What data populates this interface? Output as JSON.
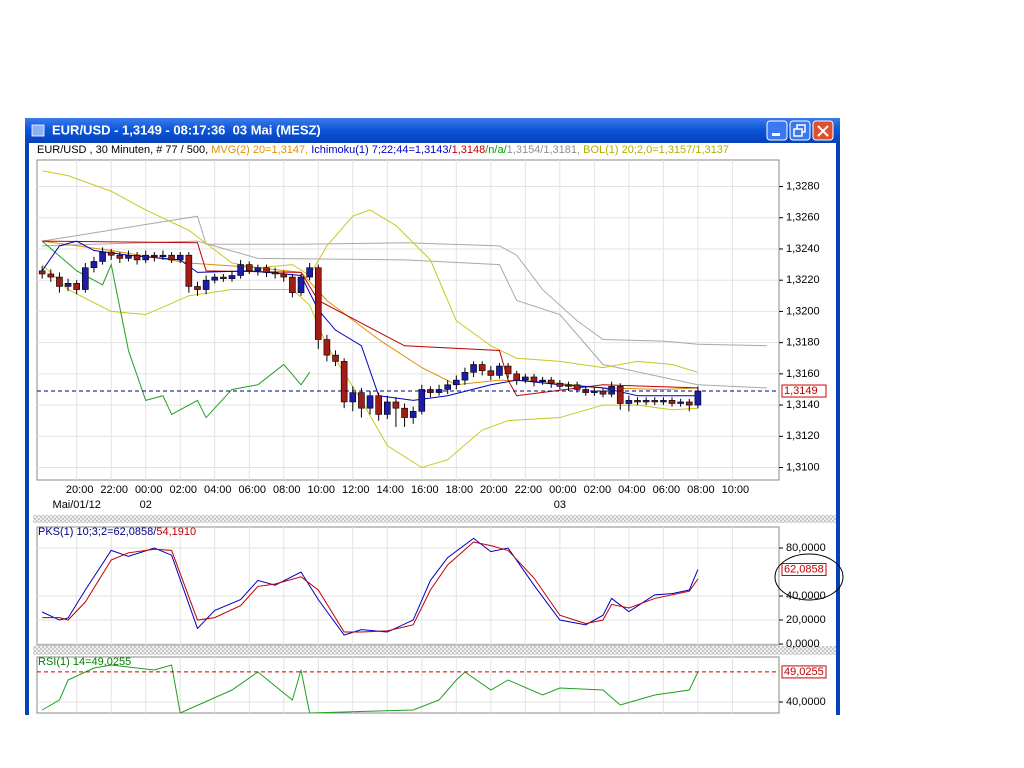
{
  "window": {
    "title": "EUR/USD - 1,3149 - 08:17:36  03 Mai (MESZ)"
  },
  "chart_data": [
    {
      "type": "candlestick",
      "legend": [
        {
          "text": "EUR/USD , 30 Minuten, # 77 / 500, ",
          "color": "#000000"
        },
        {
          "text": "MVG(2) 20=1,3147, ",
          "color": "#e09000"
        },
        {
          "text": "Ichimoku(1) 7;22;44=1,3143/",
          "color": "#0000c0"
        },
        {
          "text": "1,3148",
          "color": "#c00000"
        },
        {
          "text": "/n/a/",
          "color": "#00a000"
        },
        {
          "text": "1,3154/1,3181, ",
          "color": "#909090"
        },
        {
          "text": "BOL(1) 20;2,0=1,3157/1,3137",
          "color": "#b0b000"
        }
      ],
      "open": [
        1.3226,
        1.3224,
        1.3222,
        1.3216,
        1.3218,
        1.3214,
        1.3228,
        1.3232,
        1.3238,
        1.3236,
        1.3234,
        1.3236,
        1.3233,
        1.3236,
        1.3235,
        1.3236,
        1.3233,
        1.3236,
        1.3216,
        1.3214,
        1.322,
        1.3222,
        1.3221,
        1.3223,
        1.323,
        1.3226,
        1.3228,
        1.3225,
        1.3224,
        1.3222,
        1.3212,
        1.3222,
        1.3228,
        1.3182,
        1.3172,
        1.3168,
        1.3142,
        1.3148,
        1.3138,
        1.3146,
        1.3134,
        1.3142,
        1.3138,
        1.3132,
        1.3136,
        1.315,
        1.3148,
        1.315,
        1.3153,
        1.3156,
        1.3161,
        1.3166,
        1.3162,
        1.3159,
        1.3165,
        1.316,
        1.3156,
        1.3158,
        1.3155,
        1.3156,
        1.3154,
        1.3152,
        1.3153,
        1.315,
        1.3148,
        1.3149,
        1.3147,
        1.3152,
        1.3141,
        1.3143,
        1.3142,
        1.3143,
        1.3142,
        1.3143,
        1.3141,
        1.3142,
        1.314
      ],
      "high": [
        1.3229,
        1.3227,
        1.3225,
        1.3221,
        1.322,
        1.3231,
        1.3235,
        1.3241,
        1.324,
        1.3238,
        1.3239,
        1.3238,
        1.3239,
        1.3238,
        1.3239,
        1.3238,
        1.3238,
        1.3238,
        1.3219,
        1.3223,
        1.3224,
        1.3224,
        1.3226,
        1.3233,
        1.3232,
        1.323,
        1.323,
        1.3228,
        1.3226,
        1.3224,
        1.3224,
        1.3231,
        1.323,
        1.3185,
        1.3175,
        1.317,
        1.3152,
        1.3151,
        1.3149,
        1.3148,
        1.3146,
        1.3145,
        1.3141,
        1.3139,
        1.3153,
        1.3152,
        1.3153,
        1.3156,
        1.3159,
        1.3164,
        1.3168,
        1.3168,
        1.3165,
        1.3167,
        1.3167,
        1.3162,
        1.316,
        1.316,
        1.3158,
        1.3158,
        1.3156,
        1.3155,
        1.3155,
        1.3152,
        1.3151,
        1.3151,
        1.3155,
        1.3154,
        1.3146,
        1.3145,
        1.3145,
        1.3145,
        1.3145,
        1.3145,
        1.3144,
        1.3144,
        1.3152
      ],
      "low": [
        1.3221,
        1.3219,
        1.3212,
        1.3213,
        1.3211,
        1.3212,
        1.3225,
        1.323,
        1.3233,
        1.3231,
        1.3232,
        1.323,
        1.3231,
        1.3232,
        1.3233,
        1.3231,
        1.3231,
        1.3212,
        1.321,
        1.3211,
        1.3218,
        1.3219,
        1.3219,
        1.3221,
        1.3224,
        1.3223,
        1.3222,
        1.3221,
        1.3219,
        1.3209,
        1.321,
        1.322,
        1.3176,
        1.3168,
        1.3165,
        1.3138,
        1.3136,
        1.3132,
        1.3134,
        1.313,
        1.3131,
        1.3126,
        1.3126,
        1.3128,
        1.3134,
        1.3145,
        1.3146,
        1.3147,
        1.315,
        1.3153,
        1.3158,
        1.3159,
        1.3156,
        1.3157,
        1.3157,
        1.3153,
        1.3154,
        1.3152,
        1.3153,
        1.3151,
        1.315,
        1.3149,
        1.3148,
        1.3146,
        1.3146,
        1.3145,
        1.3145,
        1.3137,
        1.3136,
        1.314,
        1.314,
        1.314,
        1.314,
        1.3139,
        1.3139,
        1.3136,
        1.3138
      ],
      "close": [
        1.3224,
        1.3222,
        1.3216,
        1.3218,
        1.3214,
        1.3228,
        1.3232,
        1.3238,
        1.3236,
        1.3234,
        1.3236,
        1.3233,
        1.3236,
        1.3235,
        1.3236,
        1.3233,
        1.3236,
        1.3216,
        1.3214,
        1.322,
        1.3222,
        1.3221,
        1.3223,
        1.323,
        1.3226,
        1.3228,
        1.3225,
        1.3224,
        1.3222,
        1.3212,
        1.3222,
        1.3228,
        1.3182,
        1.3172,
        1.3168,
        1.3142,
        1.3148,
        1.3138,
        1.3146,
        1.3134,
        1.3142,
        1.3138,
        1.3132,
        1.3136,
        1.315,
        1.3148,
        1.315,
        1.3153,
        1.3156,
        1.3161,
        1.3166,
        1.3162,
        1.3159,
        1.3165,
        1.316,
        1.3156,
        1.3158,
        1.3155,
        1.3156,
        1.3154,
        1.3152,
        1.3153,
        1.315,
        1.3148,
        1.3149,
        1.3147,
        1.3152,
        1.3141,
        1.3143,
        1.3142,
        1.3143,
        1.3142,
        1.3143,
        1.3141,
        1.3142,
        1.314,
        1.3149
      ],
      "up_color": "#1c1ca8",
      "down_color": "#a01c14",
      "lines": [
        {
          "color": "#a8a8a8",
          "x": [
            0,
            18,
            19,
            25,
            30,
            42,
            53,
            55,
            58,
            62,
            65,
            72,
            76,
            84
          ],
          "values": [
            1.3245,
            1.3261,
            1.3243,
            1.3243,
            1.3243,
            1.3244,
            1.3242,
            1.3236,
            1.3214,
            1.3194,
            1.3182,
            1.3181,
            1.3179,
            1.3178
          ]
        },
        {
          "color": "#a8a8a8",
          "x": [
            0,
            18,
            25,
            42,
            53,
            55,
            60,
            65,
            76,
            84
          ],
          "values": [
            1.3242,
            1.3245,
            1.3234,
            1.3233,
            1.323,
            1.3207,
            1.3198,
            1.3166,
            1.3153,
            1.3151
          ]
        },
        {
          "color": "#c8c820",
          "x": [
            0,
            3,
            8,
            12,
            17,
            22,
            25,
            29,
            31,
            33,
            36,
            38,
            41,
            45,
            48,
            52,
            55,
            60,
            65,
            69,
            73,
            76
          ],
          "values": [
            1.329,
            1.3287,
            1.3277,
            1.3265,
            1.3252,
            1.3231,
            1.3228,
            1.323,
            1.3223,
            1.3242,
            1.3261,
            1.3265,
            1.3255,
            1.3233,
            1.3194,
            1.3178,
            1.317,
            1.3168,
            1.3164,
            1.3168,
            1.3166,
            1.3161
          ]
        },
        {
          "color": "#c8c820",
          "x": [
            0,
            3,
            8,
            12,
            17,
            22,
            29,
            31,
            33,
            37,
            40,
            44,
            47,
            51,
            54,
            60,
            65,
            69,
            73,
            76
          ],
          "values": [
            1.323,
            1.3214,
            1.32,
            1.3198,
            1.321,
            1.3214,
            1.3214,
            1.3204,
            1.3178,
            1.3143,
            1.3114,
            1.31,
            1.3105,
            1.3124,
            1.313,
            1.3132,
            1.314,
            1.314,
            1.3137,
            1.3138
          ]
        },
        {
          "color": "#e09000",
          "x": [
            0,
            8,
            17,
            25,
            30,
            33,
            39,
            44,
            48,
            53,
            58,
            65,
            72,
            76
          ],
          "values": [
            1.3245,
            1.3239,
            1.3231,
            1.3228,
            1.3225,
            1.3207,
            1.3182,
            1.3164,
            1.3153,
            1.3156,
            1.3155,
            1.3151,
            1.315,
            1.3151
          ]
        },
        {
          "color": "#20a020",
          "x": [
            0,
            4,
            7,
            8,
            10,
            12,
            14,
            15,
            18,
            19,
            22,
            25,
            28,
            30,
            31
          ],
          "values": [
            1.3245,
            1.3226,
            1.3217,
            1.323,
            1.3175,
            1.3143,
            1.3146,
            1.3134,
            1.3143,
            1.3132,
            1.315,
            1.3153,
            1.3166,
            1.3153,
            1.3161
          ]
        },
        {
          "color": "#c00000",
          "x": [
            0,
            18,
            19,
            30,
            32,
            42,
            53,
            54,
            55,
            65,
            76
          ],
          "values": [
            1.3245,
            1.3244,
            1.3226,
            1.3225,
            1.3207,
            1.3178,
            1.3175,
            1.3156,
            1.3146,
            1.3153,
            1.3151
          ]
        },
        {
          "color": "#0000c0",
          "x": [
            0,
            2,
            4,
            6,
            10,
            16,
            18,
            24,
            30,
            32,
            34,
            37,
            39,
            43,
            47,
            52,
            55,
            60,
            65,
            69,
            76
          ],
          "values": [
            1.3226,
            1.3242,
            1.3245,
            1.3239,
            1.3236,
            1.3233,
            1.3225,
            1.3226,
            1.3223,
            1.3201,
            1.3188,
            1.3178,
            1.3146,
            1.3143,
            1.3146,
            1.3153,
            1.3156,
            1.3153,
            1.3151,
            1.3146,
            1.3146
          ]
        }
      ],
      "last_value": {
        "value": 1.3149,
        "label": "1,3149"
      },
      "last_line_color": "#000080",
      "xlim": [
        -0.6,
        85.4
      ],
      "xticks": [
        {
          "value": 4,
          "label": "20:00"
        },
        {
          "value": 8,
          "label": "22:00"
        },
        {
          "value": 12,
          "label": "00:00"
        },
        {
          "value": 16,
          "label": "02:00"
        },
        {
          "value": 20,
          "label": "04:00"
        },
        {
          "value": 24,
          "label": "06:00"
        },
        {
          "value": 28,
          "label": "08:00"
        },
        {
          "value": 32,
          "label": "10:00"
        },
        {
          "value": 36,
          "label": "12:00"
        },
        {
          "value": 40,
          "label": "14:00"
        },
        {
          "value": 44,
          "label": "16:00"
        },
        {
          "value": 48,
          "label": "18:00"
        },
        {
          "value": 52,
          "label": "20:00"
        },
        {
          "value": 56,
          "label": "22:00"
        },
        {
          "value": 60,
          "label": "00:00"
        },
        {
          "value": 64,
          "label": "02:00"
        },
        {
          "value": 68,
          "label": "04:00"
        },
        {
          "value": 72,
          "label": "06:00"
        },
        {
          "value": 76,
          "label": "08:00"
        },
        {
          "value": 80,
          "label": "10:00"
        }
      ],
      "date_ticks": [
        {
          "value": 4,
          "label": "Mai/01/12"
        },
        {
          "value": 12,
          "label": "02"
        },
        {
          "value": 60,
          "label": "03"
        }
      ],
      "ylim": [
        1.3092,
        1.3297
      ],
      "yticks": [
        {
          "value": 1.31,
          "label": "1,3100"
        },
        {
          "value": 1.312,
          "label": "1,3120"
        },
        {
          "value": 1.314,
          "label": "1,3140"
        },
        {
          "value": 1.316,
          "label": "1,3160"
        },
        {
          "value": 1.318,
          "label": "1,3180"
        },
        {
          "value": 1.32,
          "label": "1,3200"
        },
        {
          "value": 1.322,
          "label": "1,3220"
        },
        {
          "value": 1.324,
          "label": "1,3240"
        },
        {
          "value": 1.326,
          "label": "1,3260"
        },
        {
          "value": 1.328,
          "label": "1,3280"
        }
      ],
      "grid": true
    },
    {
      "type": "line",
      "legend": [
        {
          "text": "PKS(1) 10;3;2=62,0858/",
          "color": "#000080"
        },
        {
          "text": "54,1910",
          "color": "#c00000"
        }
      ],
      "lines": [
        {
          "color": "#0000c0",
          "x": [
            0,
            2,
            3,
            5,
            8,
            10,
            13,
            15,
            18,
            20,
            23,
            25,
            27,
            30,
            32,
            35,
            37,
            40,
            43,
            45,
            47,
            50,
            52,
            54,
            57,
            60,
            63,
            65,
            66,
            68,
            71,
            73,
            75,
            76
          ],
          "values": [
            26.7,
            20,
            21.7,
            45,
            78,
            73,
            80,
            74,
            13,
            28,
            37,
            53,
            49,
            60,
            37,
            7.5,
            12,
            10,
            20,
            53,
            72,
            88,
            77,
            80,
            49,
            20,
            16,
            24,
            38,
            27,
            41,
            42,
            45,
            62.0858
          ]
        },
        {
          "color": "#c00000",
          "x": [
            0,
            2,
            3,
            5,
            8,
            10,
            13,
            15,
            18,
            20,
            23,
            25,
            27,
            30,
            32,
            35,
            37,
            40,
            43,
            45,
            47,
            50,
            52,
            54,
            57,
            60,
            63,
            65,
            66,
            68,
            71,
            73,
            75,
            76
          ],
          "values": [
            22,
            22,
            20,
            35,
            70,
            76,
            79,
            78,
            20,
            22,
            32,
            48,
            50,
            56,
            45,
            10,
            10,
            11,
            16,
            45,
            66,
            85,
            82,
            78,
            55,
            24,
            17,
            20,
            33,
            30,
            38,
            41,
            44,
            54.191
          ]
        }
      ],
      "last_value": {
        "value": 62.0858,
        "label": "62,0858"
      },
      "xlim": [
        -0.6,
        85.4
      ],
      "ylim": [
        -0.8,
        97.5
      ],
      "yticks": [
        {
          "value": 0,
          "label": "0,0000"
        },
        {
          "value": 20,
          "label": "20,0000"
        },
        {
          "value": 40,
          "label": "40,0000"
        },
        {
          "value": 80,
          "label": "80,0000"
        }
      ],
      "grid": true
    },
    {
      "type": "line",
      "legend": [
        {
          "text": "RSI(1) 14=49,0255",
          "color": "#008000"
        }
      ],
      "lines": [
        {
          "color": "#20a020",
          "x": [
            0,
            2,
            3,
            6,
            8,
            13,
            15,
            16,
            22,
            25,
            29,
            30,
            31,
            43,
            46,
            48,
            49,
            52,
            54,
            58,
            60,
            65,
            67,
            69,
            71,
            75,
            76
          ],
          "values": [
            37.6,
            40.6,
            46.6,
            50.2,
            51.1,
            49.6,
            51.1,
            36.7,
            43.6,
            49.0,
            40.6,
            49.6,
            36.7,
            37.6,
            40.6,
            46.6,
            49.0,
            43.6,
            46.6,
            42.1,
            44.2,
            43.6,
            39.1,
            40.6,
            42.1,
            43.6,
            49.0255
          ]
        }
      ],
      "last_value": {
        "value": 49.0255,
        "label": "49,0255"
      },
      "last_line_color": "#cc0000",
      "xlim": [
        -0.6,
        85.4
      ],
      "ylim": [
        36.7,
        53.5
      ],
      "yticks": [
        {
          "value": 40,
          "label": "40,0000"
        }
      ],
      "grid": true
    }
  ]
}
